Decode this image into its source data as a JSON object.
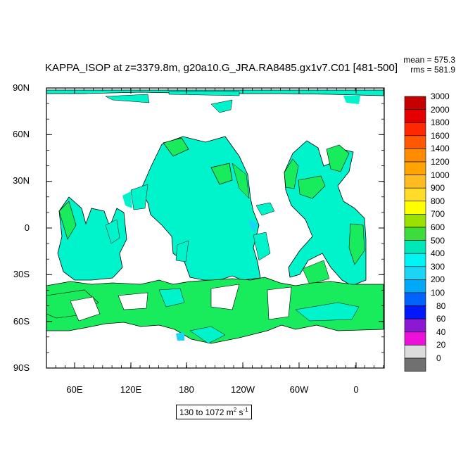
{
  "header": {
    "title": "KAPPA_ISOP at z=3379.8m, g20a10.G_JRA.RA8485.gx1v7.C01 [481-500]",
    "mean_label": "mean = 575.3",
    "rms_label": "rms = 581.9"
  },
  "range_box": {
    "prefix": "130 to 1072 m",
    "sup1": "2",
    "middle": " s",
    "sup2": "-1"
  },
  "chart_data": {
    "type": "heatmap",
    "title": "KAPPA_ISOP at z=3379.8m, g20a10.G_JRA.RA8485.gx1v7.C01 [481-500]",
    "stats": {
      "mean": 575.3,
      "rms": 581.9
    },
    "units": "m^2 s^-1",
    "range": [
      130,
      1072
    ],
    "y_ticks": [
      "90N",
      "60N",
      "30N",
      "0",
      "30S",
      "60S",
      "90S"
    ],
    "x_ticks": [
      "60E",
      "120E",
      "180",
      "120W",
      "60W",
      "0"
    ],
    "colorbar": {
      "levels": [
        "3000",
        "2000",
        "1800",
        "1600",
        "1400",
        "1200",
        "1000",
        "900",
        "800",
        "700",
        "600",
        "500",
        "400",
        "300",
        "200",
        "100",
        "80",
        "60",
        "40",
        "20",
        "0"
      ],
      "colors": [
        "#c40000",
        "#e40000",
        "#ff2800",
        "#ff5800",
        "#ff8c00",
        "#ffa400",
        "#ffbc20",
        "#ffdc28",
        "#ffff00",
        "#9ce000",
        "#3cdc3c",
        "#00e8b8",
        "#00f4f4",
        "#1cd4f4",
        "#00a8f8",
        "#0064fc",
        "#0018fc",
        "#8c18d4",
        "#ec10d8",
        "#dcdcdc",
        "#707070"
      ]
    },
    "dominant_values": {
      "deep_ocean": "500-600",
      "southern_ocean_and_margins": "600-700"
    },
    "colors": {
      "ocean_main": "#00f4cc",
      "ocean_high": "#18ec5c",
      "ocean_low": "#1cd4f4",
      "land": "#ffffff"
    }
  }
}
